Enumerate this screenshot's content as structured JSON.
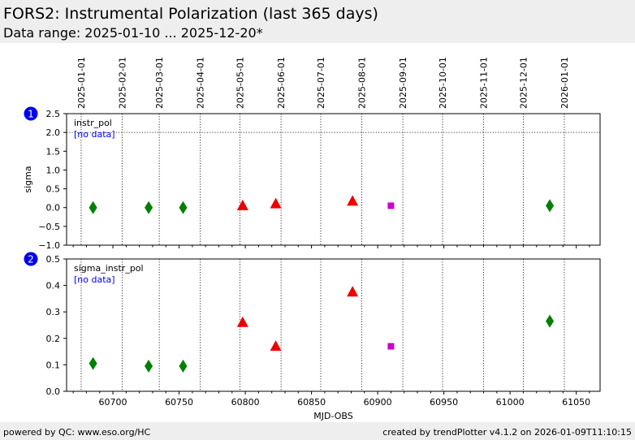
{
  "header": {
    "title": "FORS2: Instrumental Polarization (last 365 days)",
    "subtitle": "Data range: 2025-01-10 ... 2025-12-20*"
  },
  "footer": {
    "left": "powered by QC: www.eso.org/HC",
    "right": "created by trendPlotter v4.1.2 on 2026-01-09T11:10:15"
  },
  "colors": {
    "green": "#008000",
    "red": "#ee0000",
    "magenta": "#cc00cc",
    "badge": "#0000ee",
    "nodata": "#0000ee"
  },
  "chart_data": [
    {
      "type": "scatter",
      "panel_badge": "1",
      "label": "instr_pol",
      "no_data_note": "[no data]",
      "ylabel": "sigma",
      "xlabel": "",
      "xlim": [
        60665,
        61068
      ],
      "ylim": [
        -1.0,
        2.5
      ],
      "yticks": [
        -1.0,
        -0.5,
        0.0,
        0.5,
        1.0,
        1.5,
        2.0,
        2.5
      ],
      "ytick_labels": [
        "−1.0",
        "−0.5",
        "0.0",
        "0.5",
        "1.0",
        "1.5",
        "2.0",
        "2.5"
      ],
      "hline": 2.0,
      "series": [
        {
          "marker": "diamond",
          "color": "green",
          "x": [
            60685,
            60727,
            60753,
            61030
          ],
          "y": [
            0.0,
            0.0,
            0.0,
            0.05
          ]
        },
        {
          "marker": "triangle",
          "color": "red",
          "x": [
            60798,
            60823,
            60881
          ],
          "y": [
            0.05,
            0.1,
            0.17
          ]
        },
        {
          "marker": "square",
          "color": "magenta",
          "x": [
            60910
          ],
          "y": [
            0.05
          ]
        }
      ]
    },
    {
      "type": "scatter",
      "panel_badge": "2",
      "label": "sigma_instr_pol",
      "no_data_note": "[no data]",
      "ylabel": "",
      "xlabel": "MJD-OBS",
      "xlim": [
        60665,
        61068
      ],
      "ylim": [
        0.0,
        0.5
      ],
      "yticks": [
        0.0,
        0.1,
        0.2,
        0.3,
        0.4,
        0.5
      ],
      "ytick_labels": [
        "0.0",
        "0.1",
        "0.2",
        "0.3",
        "0.4",
        "0.5"
      ],
      "series": [
        {
          "marker": "diamond",
          "color": "green",
          "x": [
            60685,
            60727,
            60753,
            61030
          ],
          "y": [
            0.105,
            0.095,
            0.095,
            0.265
          ]
        },
        {
          "marker": "triangle",
          "color": "red",
          "x": [
            60798,
            60823,
            60881
          ],
          "y": [
            0.26,
            0.17,
            0.375
          ]
        },
        {
          "marker": "square",
          "color": "magenta",
          "x": [
            60910
          ],
          "y": [
            0.17
          ]
        }
      ]
    }
  ],
  "x_axis": {
    "ticks": [
      60700,
      60750,
      60800,
      60850,
      60900,
      60950,
      61000,
      61050
    ],
    "tick_labels": [
      "60700",
      "60750",
      "60800",
      "60850",
      "60900",
      "60950",
      "61000",
      "61050"
    ]
  },
  "date_axis": {
    "mjd": [
      60676,
      60707,
      60735,
      60766,
      60796,
      60827,
      60857,
      60888,
      60919,
      60949,
      60980,
      61010,
      61041
    ],
    "labels": [
      "2025-01-01",
      "2025-02-01",
      "2025-03-01",
      "2025-04-01",
      "2025-05-01",
      "2025-06-01",
      "2025-07-01",
      "2025-08-01",
      "2025-09-01",
      "2025-10-01",
      "2025-11-01",
      "2025-12-01",
      "2026-01-01"
    ]
  }
}
